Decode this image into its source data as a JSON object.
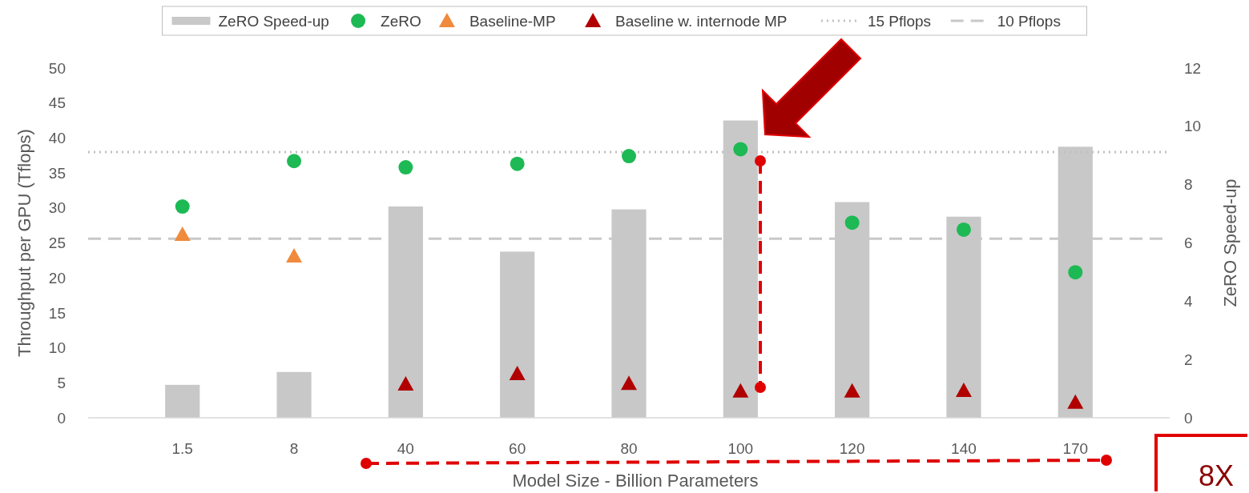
{
  "chart_data": {
    "type": "scatter",
    "xlabel": "Model Size - Billion Parameters",
    "ylabel": "Throughput per GPU (Tflops)",
    "y2label": "ZeRO Speed-up",
    "categories": [
      "1.5",
      "8",
      "40",
      "60",
      "80",
      "100",
      "120",
      "140",
      "170"
    ],
    "series": [
      {
        "name": "ZeRO Speed-up",
        "type": "bar",
        "axis": "y2",
        "color": "#c8c8c8",
        "values": [
          1.13,
          1.57,
          7.25,
          5.7,
          7.15,
          10.2,
          7.4,
          6.9,
          9.3
        ]
      },
      {
        "name": "ZeRO",
        "marker": "circle",
        "color": "#1db954",
        "values": [
          30.2,
          36.7,
          35.8,
          36.3,
          37.4,
          38.4,
          27.9,
          26.9,
          20.8
        ]
      },
      {
        "name": "Baseline-MP",
        "marker": "triangle",
        "color": "#f08a3c",
        "values": [
          26.2,
          23.1,
          null,
          null,
          null,
          null,
          null,
          null,
          null
        ]
      },
      {
        "name": "Baseline w. internode MP",
        "marker": "triangle",
        "color": "#b00000",
        "values": [
          null,
          null,
          4.8,
          6.3,
          4.9,
          3.8,
          3.8,
          3.9,
          2.2
        ]
      }
    ],
    "ref_lines": [
      {
        "axis": "y",
        "value": 38,
        "label": "15 Pflops",
        "color": "#c0c0c0",
        "line_style": "dotted"
      },
      {
        "axis": "y",
        "value": 25.6,
        "label": "10 Pflops",
        "color": "#c8c8c8",
        "line_style": "dashed"
      }
    ],
    "ylim": [
      0,
      50
    ],
    "yticks": [
      0,
      5,
      10,
      15,
      20,
      25,
      30,
      35,
      40,
      45,
      50
    ],
    "y2lim": [
      0,
      12
    ],
    "y2ticks": [
      0,
      2,
      4,
      6,
      8,
      10,
      12
    ],
    "legend": "top",
    "grid": false,
    "annotations": [
      "8X"
    ]
  }
}
